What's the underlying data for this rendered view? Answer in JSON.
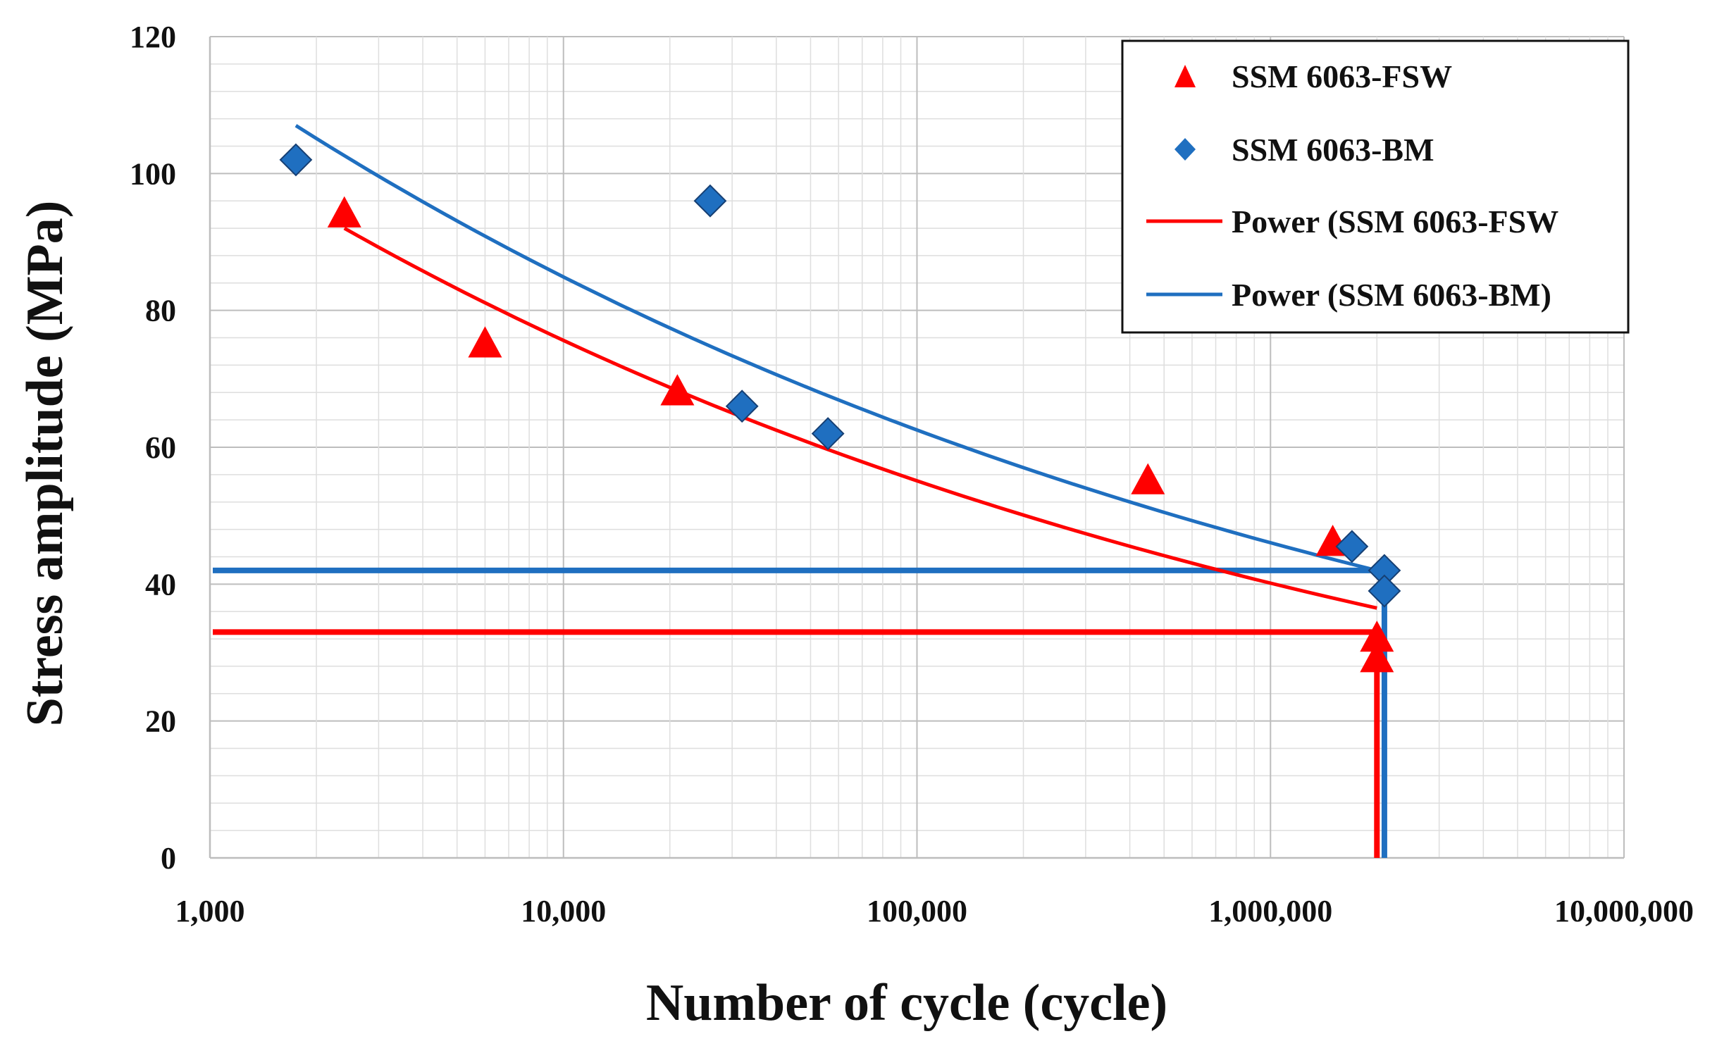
{
  "chart_data": {
    "type": "scatter",
    "xlabel": "Number of cycle (cycle)",
    "ylabel": "Stress amplitude (MPa)",
    "x_scale": "log",
    "xlim": [
      1000,
      10000000
    ],
    "ylim": [
      0,
      120
    ],
    "grid": true,
    "legend_position": "top-right",
    "x_ticks": [
      {
        "value": 1000,
        "label": "1,000"
      },
      {
        "value": 10000,
        "label": "10,000"
      },
      {
        "value": 100000,
        "label": "100,000"
      },
      {
        "value": 1000000,
        "label": "1,000,000"
      },
      {
        "value": 10000000,
        "label": "10,000,000"
      }
    ],
    "y_ticks": [
      {
        "value": 0,
        "label": "0"
      },
      {
        "value": 20,
        "label": "20"
      },
      {
        "value": 40,
        "label": "40"
      },
      {
        "value": 60,
        "label": "60"
      },
      {
        "value": 80,
        "label": "80"
      },
      {
        "value": 100,
        "label": "100"
      },
      {
        "value": 120,
        "label": "120"
      }
    ],
    "series": [
      {
        "name": "SSM 6063-FSW",
        "kind": "scatter",
        "marker": "triangle",
        "color": "#ff0000",
        "points": [
          {
            "x": 2400,
            "y": 94
          },
          {
            "x": 6000,
            "y": 75
          },
          {
            "x": 21000,
            "y": 68
          },
          {
            "x": 450000,
            "y": 55
          },
          {
            "x": 1500000,
            "y": 46
          },
          {
            "x": 2000000,
            "y": 32
          },
          {
            "x": 2000000,
            "y": 29
          }
        ]
      },
      {
        "name": "SSM 6063-BM",
        "kind": "scatter",
        "marker": "diamond",
        "color": "#1f6fc0",
        "points": [
          {
            "x": 1750,
            "y": 102
          },
          {
            "x": 26000,
            "y": 96
          },
          {
            "x": 32000,
            "y": 66
          },
          {
            "x": 56000,
            "y": 62
          },
          {
            "x": 1700000,
            "y": 45.5
          },
          {
            "x": 2100000,
            "y": 42
          },
          {
            "x": 2100000,
            "y": 39
          }
        ]
      },
      {
        "name": "Power (SSM 6063-FSW",
        "kind": "trend",
        "color": "#ff0000",
        "x_range": [
          2400,
          2000000
        ],
        "y_range": [
          92,
          36.5
        ]
      },
      {
        "name": "Power (SSM 6063-BM)",
        "kind": "trend",
        "color": "#1f6fc0",
        "x_range": [
          1750,
          2000000
        ],
        "y_range": [
          107,
          42
        ]
      }
    ],
    "reference_lines": [
      {
        "series": "BM",
        "color": "#1f6fc0",
        "horizontal_y": 42,
        "vertical_x": 2100000
      },
      {
        "series": "FSW",
        "color": "#ff0000",
        "horizontal_y": 33,
        "vertical_x": 2000000
      }
    ],
    "legend": [
      {
        "label": "SSM 6063-FSW",
        "symbol": "triangle",
        "color": "#ff0000"
      },
      {
        "label": "SSM 6063-BM",
        "symbol": "diamond",
        "color": "#1f6fc0"
      },
      {
        "label": "Power (SSM 6063-FSW",
        "symbol": "line",
        "color": "#ff0000"
      },
      {
        "label": "Power (SSM 6063-BM)",
        "symbol": "line",
        "color": "#1f6fc0"
      }
    ]
  }
}
